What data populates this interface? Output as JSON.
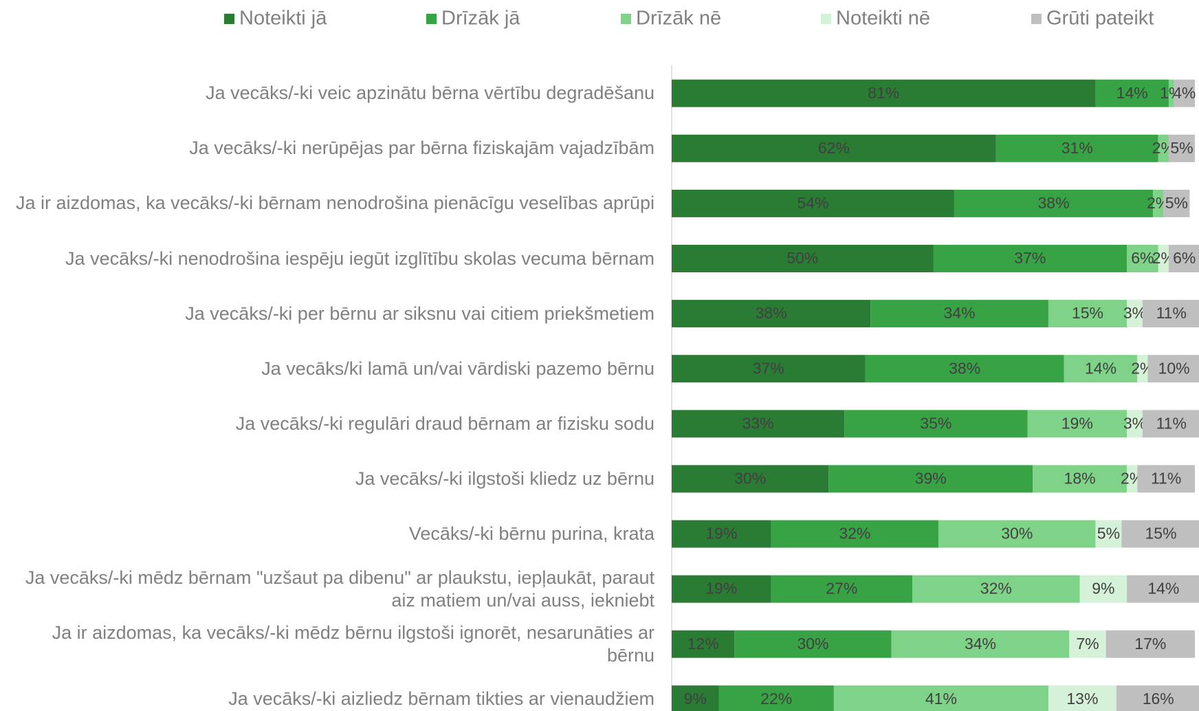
{
  "chart_data": {
    "type": "stacked-bar-horizontal",
    "categories": [
      "Ja vecāks/-ki veic apzinātu bērna vērtību degradēšanu",
      "Ja vecāks/-ki nerūpējas par bērna fiziskajām vajadzībām",
      "Ja ir aizdomas, ka vecāks/-ki bērnam nenodrošina pienācīgu veselības aprūpi",
      "Ja vecāks/-ki nenodrošina iespēju iegūt izglītību skolas vecuma bērnam",
      "Ja vecāks/-ki per bērnu ar siksnu vai citiem priekšmetiem",
      "Ja vecāks/ki lamā un/vai vārdiski pazemo bērnu",
      "Ja vecāks/-ki regulāri draud bērnam ar fizisku sodu",
      "Ja vecāks/-ki ilgstoši kliedz uz bērnu",
      "Vecāks/-ki bērnu purina, krata",
      "Ja vecāks/-ki mēdz bērnam \"uzšaut pa dibenu\" ar plaukstu, iepļaukāt, paraut aiz matiem un/vai auss, iekniebt",
      "Ja ir aizdomas, ka vecāks/-ki mēdz bērnu ilgstoši ignorēt, nesarunāties ar bērnu",
      "Ja vecāks/-ki aizliedz bērnam tikties ar vienaudžiem"
    ],
    "series": [
      {
        "name": "Noteikti jā",
        "color": "#2a7b34",
        "values": [
          81,
          62,
          54,
          50,
          38,
          37,
          33,
          30,
          19,
          19,
          12,
          9
        ],
        "value_labels": [
          "81%",
          "62%",
          "54%",
          "50%",
          "38%",
          "37%",
          "33%",
          "30%",
          "19%",
          "19%",
          "12%",
          "9%"
        ]
      },
      {
        "name": "Drīzāk jā",
        "color": "#38a345",
        "values": [
          14,
          31,
          38,
          37,
          34,
          38,
          35,
          39,
          32,
          27,
          30,
          22
        ],
        "value_labels": [
          "14%",
          "31%",
          "38%",
          "37%",
          "34%",
          "38%",
          "35%",
          "39%",
          "32%",
          "27%",
          "30%",
          "22%"
        ]
      },
      {
        "name": "Drīzāk nē",
        "color": "#7ed388",
        "values": [
          1,
          2,
          2,
          6,
          15,
          14,
          19,
          18,
          30,
          32,
          34,
          41
        ],
        "value_labels": [
          "1%",
          "2%",
          "2%",
          "6%",
          "15%",
          "14%",
          "19%",
          "18%",
          "30%",
          "32%",
          "34%",
          "41%"
        ]
      },
      {
        "name": "Noteikti nē",
        "color": "#d5f1d7",
        "values": [
          null,
          null,
          null,
          2,
          3,
          2,
          3,
          2,
          5,
          9,
          7,
          13
        ],
        "value_labels": [
          null,
          null,
          null,
          "2%",
          "3%",
          "2%",
          "3%",
          "2%",
          "5%",
          "9%",
          "7%",
          "13%"
        ]
      },
      {
        "name": "Grūti pateikt",
        "color": "#bfbfbf",
        "values": [
          4,
          5,
          5,
          6,
          11,
          10,
          11,
          11,
          15,
          14,
          17,
          16
        ],
        "value_labels": [
          "4%",
          "5%",
          "5%",
          "6%",
          "11%",
          "10%",
          "11%",
          "11%",
          "15%",
          "14%",
          "17%",
          "16%"
        ]
      }
    ],
    "xlim": [
      0,
      100
    ],
    "legend": "top"
  }
}
